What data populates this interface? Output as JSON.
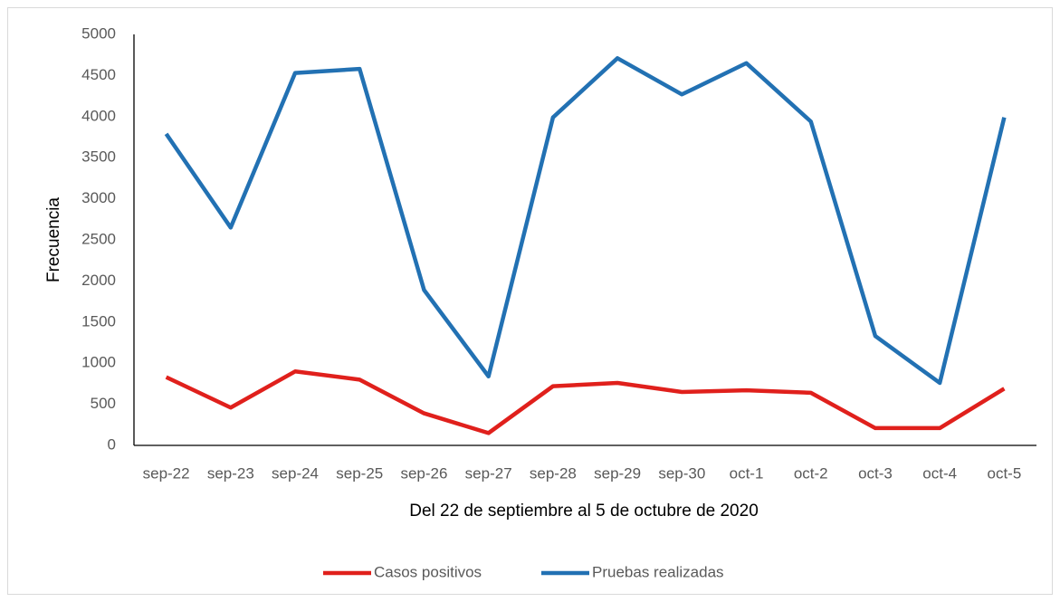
{
  "chart_data": {
    "type": "line",
    "x_label": "Del 22 de septiembre al 5 de octubre de 2020",
    "y_label": "Frecuencia",
    "categories": [
      "sep-22",
      "sep-23",
      "sep-24",
      "sep-25",
      "sep-26",
      "sep-27",
      "sep-28",
      "sep-29",
      "sep-30",
      "oct-1",
      "oct-2",
      "oct-3",
      "oct-4",
      "oct-5"
    ],
    "series": [
      {
        "name": "Casos positivos",
        "color": "#e0201c",
        "values": [
          830,
          460,
          900,
          800,
          390,
          150,
          720,
          760,
          650,
          670,
          640,
          210,
          210,
          690
        ]
      },
      {
        "name": "Pruebas realizadas",
        "color": "#2271b3",
        "values": [
          3790,
          2650,
          4530,
          4580,
          1890,
          840,
          3990,
          4710,
          4270,
          4650,
          3940,
          1330,
          760,
          3990
        ]
      }
    ],
    "ylim": [
      0,
      5000
    ],
    "yticks": [
      0,
      500,
      1000,
      1500,
      2000,
      2500,
      3000,
      3500,
      4000,
      4500,
      5000
    ],
    "grid": false,
    "legend": "bottom"
  }
}
